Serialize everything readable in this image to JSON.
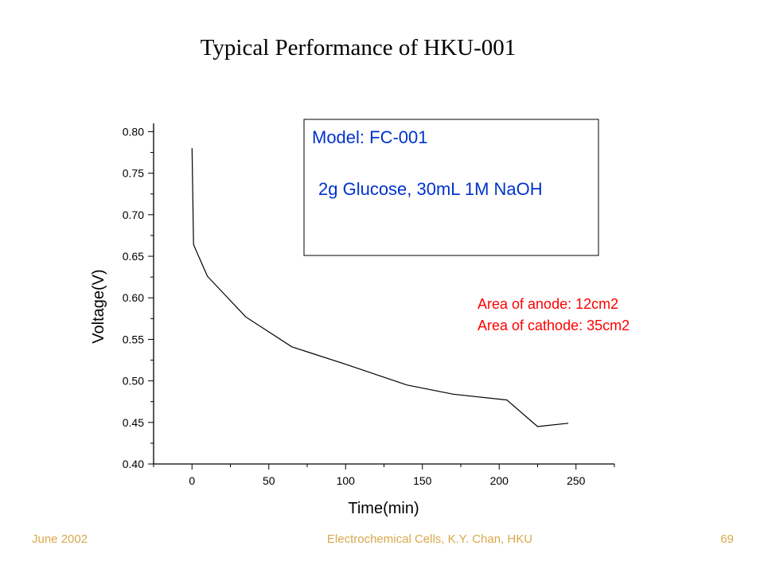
{
  "slide": {
    "title": "Typical Performance of HKU-001",
    "footer_left": "June 2002",
    "footer_center": "Electrochemical Cells,   K.Y. Chan,   HKU",
    "footer_right": "69",
    "footer_color": "#d9a84a"
  },
  "chart_data": {
    "type": "line",
    "title": "",
    "xlabel": "Time(min)",
    "ylabel": "Voltage(V)",
    "xlim": [
      -25,
      275
    ],
    "ylim": [
      0.4,
      0.81
    ],
    "xticks": [
      0,
      50,
      100,
      150,
      200,
      250
    ],
    "yticks": [
      0.4,
      0.45,
      0.5,
      0.55,
      0.6,
      0.65,
      0.7,
      0.75,
      0.8
    ],
    "xtick_labels": [
      "0",
      "50",
      "100",
      "150",
      "200",
      "250"
    ],
    "ytick_labels": [
      "0.40",
      "0.45",
      "0.50",
      "0.55",
      "0.60",
      "0.65",
      "0.70",
      "0.75",
      "0.80"
    ],
    "grid": false,
    "series": [
      {
        "color": "#000000",
        "x": [
          0,
          1,
          10,
          35,
          65,
          100,
          140,
          170,
          205,
          225,
          245
        ],
        "y": [
          0.78,
          0.664,
          0.626,
          0.577,
          0.541,
          0.52,
          0.495,
          0.484,
          0.477,
          0.445,
          0.449
        ]
      }
    ],
    "annotations": {
      "box_line1": "Model: FC-001",
      "box_line2": "2g Glucose, 30mL 1M NaOH",
      "box_color": "#0033cc",
      "area_line1": "Area of anode: 12cm2",
      "area_line2": "Area of cathode: 35cm2",
      "area_color": "#ff0000"
    }
  }
}
